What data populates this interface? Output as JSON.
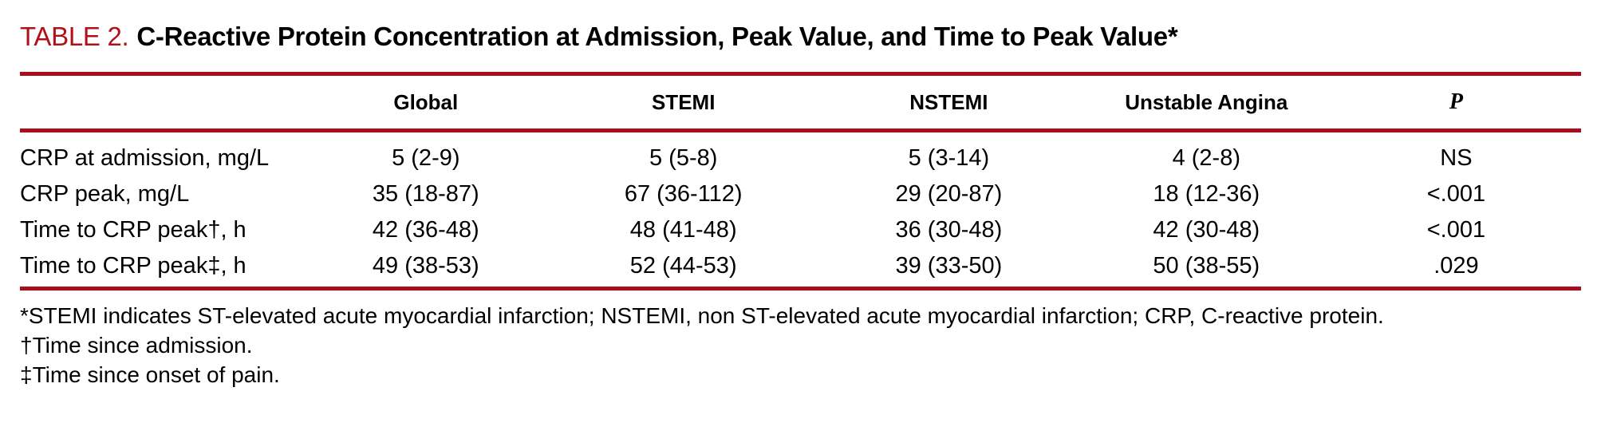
{
  "title": {
    "label": "TABLE 2.",
    "text": "C-Reactive Protein Concentration at Admission, Peak Value, and Time to Peak Value*"
  },
  "colors": {
    "rule_red": "#A80E1C",
    "title_label_red": "#B01219",
    "text": "#000000",
    "background": "#FFFFFF"
  },
  "table": {
    "columns": [
      "",
      "Global",
      "STEMI",
      "NSTEMI",
      "Unstable Angina",
      "P"
    ],
    "rows": [
      [
        "CRP at admission, mg/L",
        "5 (2-9)",
        "5 (5-8)",
        "5 (3-14)",
        "4 (2-8)",
        "NS"
      ],
      [
        "CRP peak, mg/L",
        "35 (18-87)",
        "67 (36-112)",
        "29 (20-87)",
        "18 (12-36)",
        "<.001"
      ],
      [
        "Time to CRP peak†, h",
        "42 (36-48)",
        "48 (41-48)",
        "36 (30-48)",
        "42 (30-48)",
        "<.001"
      ],
      [
        "Time to CRP peak‡, h",
        "49 (38-53)",
        "52 (44-53)",
        "39 (33-50)",
        "50 (38-55)",
        ".029"
      ]
    ]
  },
  "chart_data": {
    "type": "table",
    "title": "TABLE 2. C-Reactive Protein Concentration at Admission, Peak Value, and Time to Peak Value*",
    "columns": [
      "Global",
      "STEMI",
      "NSTEMI",
      "Unstable Angina",
      "P"
    ],
    "rows": [
      {
        "label": "CRP at admission, mg/L",
        "values": [
          "5 (2-9)",
          "5 (5-8)",
          "5 (3-14)",
          "4 (2-8)",
          "NS"
        ]
      },
      {
        "label": "CRP peak, mg/L",
        "values": [
          "35 (18-87)",
          "67 (36-112)",
          "29 (20-87)",
          "18 (12-36)",
          "<.001"
        ]
      },
      {
        "label": "Time to CRP peak†, h",
        "values": [
          "42 (36-48)",
          "48 (41-48)",
          "36 (30-48)",
          "42 (30-48)",
          "<.001"
        ]
      },
      {
        "label": "Time to CRP peak‡, h",
        "values": [
          "49 (38-53)",
          "52 (44-53)",
          "39 (33-50)",
          "50 (38-55)",
          ".029"
        ]
      }
    ]
  },
  "footnotes": [
    "*STEMI indicates ST-elevated acute myocardial infarction; NSTEMI, non ST-elevated acute myocardial infarction; CRP, C-reactive protein.",
    "†Time since admission.",
    "‡Time since onset of pain."
  ]
}
